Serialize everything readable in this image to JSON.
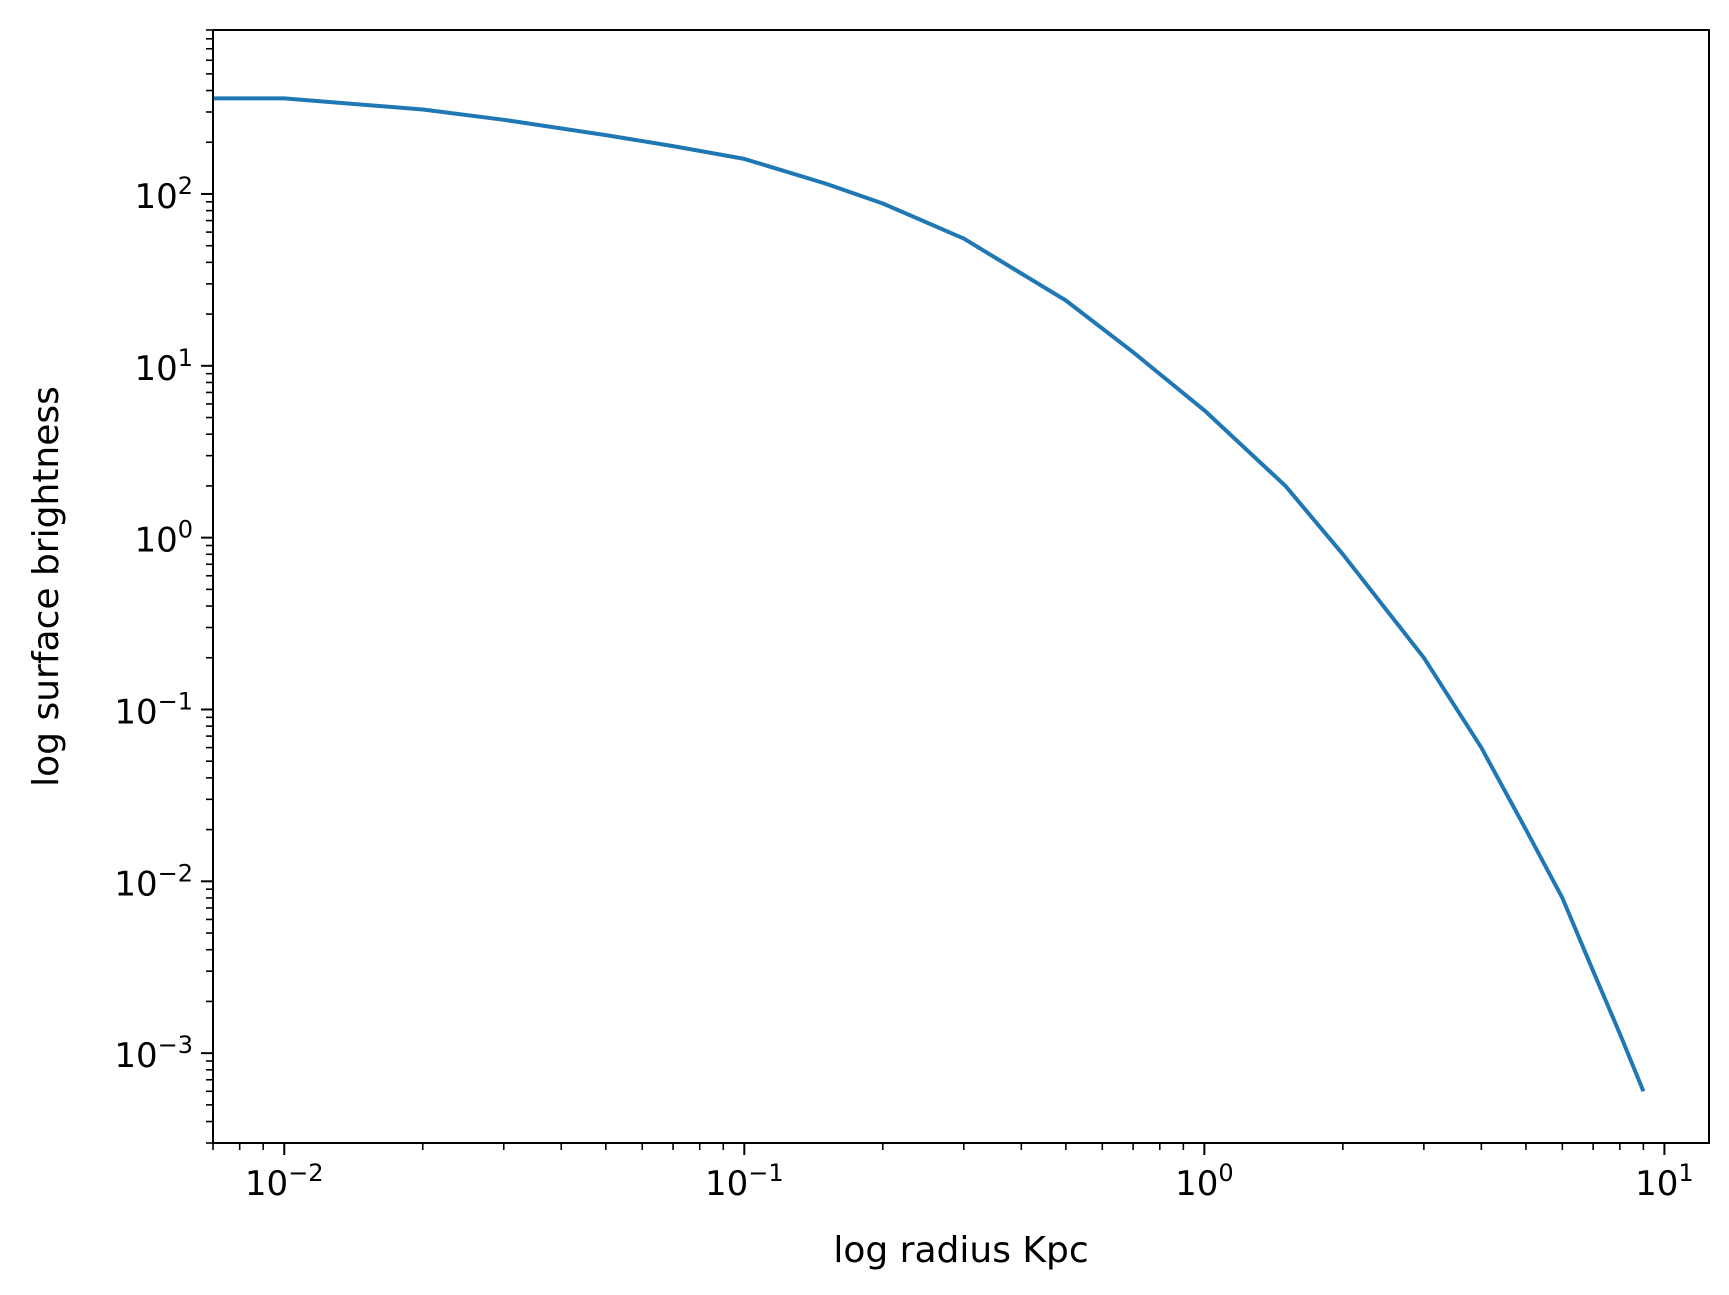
{
  "chart_data": {
    "type": "line",
    "title": "",
    "xlabel": "log radius Kpc",
    "ylabel": "log surface brightness",
    "xscale": "log",
    "yscale": "log",
    "xlim": [
      0.007,
      12.5
    ],
    "ylim": [
      0.0003,
      900
    ],
    "grid": false,
    "x_ticks": [
      {
        "base": "10",
        "exp": "−2",
        "value": 0.01
      },
      {
        "base": "10",
        "exp": "−1",
        "value": 0.1
      },
      {
        "base": "10",
        "exp": "0",
        "value": 1
      },
      {
        "base": "10",
        "exp": "1",
        "value": 10
      }
    ],
    "y_ticks": [
      {
        "base": "10",
        "exp": "−3",
        "value": 0.001
      },
      {
        "base": "10",
        "exp": "−2",
        "value": 0.01
      },
      {
        "base": "10",
        "exp": "−1",
        "value": 0.1
      },
      {
        "base": "10",
        "exp": "0",
        "value": 1
      },
      {
        "base": "10",
        "exp": "1",
        "value": 10
      },
      {
        "base": "10",
        "exp": "2",
        "value": 100
      }
    ],
    "series": [
      {
        "color": "#1f77b4",
        "x": [
          0.007,
          0.01,
          0.02,
          0.03,
          0.05,
          0.07,
          0.1,
          0.15,
          0.2,
          0.3,
          0.5,
          0.7,
          1.0,
          1.5,
          2.0,
          3.0,
          4.0,
          5.0,
          6.0,
          7.0,
          8.0,
          9.0
        ],
        "y": [
          360,
          360,
          310,
          270,
          220,
          190,
          160,
          115,
          88,
          55,
          24,
          12,
          5.5,
          2.0,
          0.8,
          0.2,
          0.06,
          0.02,
          0.008,
          0.003,
          0.0013,
          0.0006
        ]
      }
    ]
  }
}
